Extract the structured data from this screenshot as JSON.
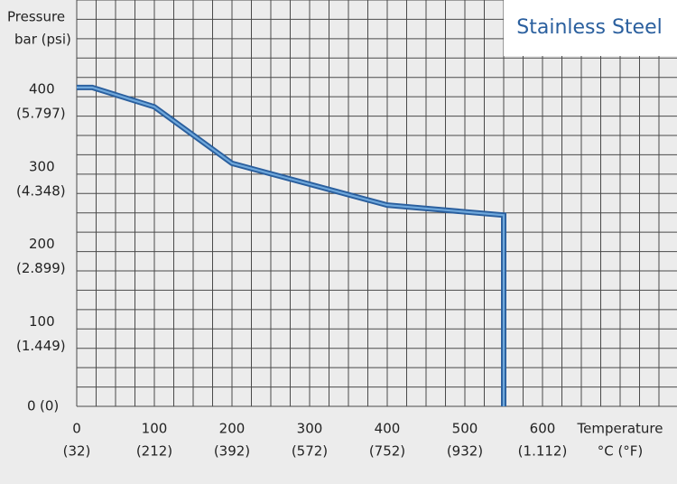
{
  "chart_data": {
    "type": "line",
    "title": "Stainless Steel",
    "ylabel": [
      "Pressure",
      "bar (psi)"
    ],
    "xlabel": [
      "Temperature",
      "°C (°F)"
    ],
    "x": [
      0,
      20,
      100,
      200,
      300,
      400,
      550,
      550
    ],
    "series": [
      {
        "name": "Stainless Steel",
        "color": "#2a5f9e",
        "values": [
          412,
          412,
          387,
          314,
          287,
          260,
          247,
          0
        ]
      }
    ],
    "xlim": [
      0,
      775
    ],
    "ylim": [
      0,
      525
    ],
    "xticks": [
      0,
      100,
      200,
      300,
      400,
      500,
      600
    ],
    "xticks_secondary_labels": [
      "(32)",
      "(212)",
      "(392)",
      "(572)",
      "(752)",
      "(932)",
      "(1.112)"
    ],
    "yticks": [
      0,
      100,
      200,
      300,
      400
    ],
    "yticks_secondary_labels": [
      "(0)",
      "(1.449)",
      "(2.899)",
      "(4.348)",
      "(5.797)"
    ],
    "xgrid": [
      0,
      25,
      50,
      75,
      100,
      125,
      150,
      175,
      200,
      225,
      250,
      275,
      300,
      325,
      350,
      375,
      400,
      425,
      450,
      475,
      500,
      525,
      550,
      575,
      600,
      625,
      650,
      675,
      700,
      725,
      750,
      775
    ],
    "ygrid": [
      0,
      25,
      50,
      75,
      100,
      125,
      150,
      175,
      200,
      225,
      250,
      275,
      300,
      325,
      350,
      375,
      400,
      425,
      450,
      475,
      500,
      525
    ]
  }
}
